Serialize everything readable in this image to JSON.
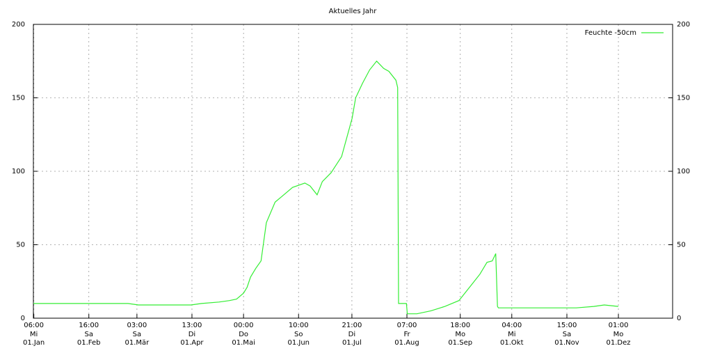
{
  "chart_data": {
    "type": "line",
    "title": "Aktuelles Jahr",
    "xlim": [
      0,
      365
    ],
    "ylim": [
      0,
      200
    ],
    "y2lim": [
      0,
      200
    ],
    "xticks": [
      {
        "value": 0.25,
        "label": "06:00\nMi\n01.Jan"
      },
      {
        "value": 31.667,
        "label": "16:00\nSa\n01.Feb"
      },
      {
        "value": 59.125,
        "label": "03:00\nSa\n01.Mär"
      },
      {
        "value": 90.542,
        "label": "13:00\nDi\n01.Apr"
      },
      {
        "value": 120,
        "label": "00:00\nDo\n01.Mai"
      },
      {
        "value": 151.417,
        "label": "10:00\nSo\n01.Jun"
      },
      {
        "value": 181.875,
        "label": "21:00\nDi\n01.Jul"
      },
      {
        "value": 213.292,
        "label": "07:00\nFr\n01.Aug"
      },
      {
        "value": 243.75,
        "label": "18:00\nMo\n01.Sep"
      },
      {
        "value": 273.167,
        "label": "04:00\nMi\n01.Okt"
      },
      {
        "value": 304.625,
        "label": "15:00\nSa\n01.Nov"
      },
      {
        "value": 334.042,
        "label": "01:00\nMo\n01.Dez"
      }
    ],
    "yticks": [
      0,
      50,
      100,
      150,
      200
    ],
    "y2ticks": [
      0,
      50,
      100,
      150,
      200
    ],
    "grid": true,
    "legend": "top-right",
    "series": [
      {
        "name": "Feuchte -50cm",
        "color": "#33ee33",
        "x": [
          0,
          40,
          54,
          60,
          90,
          96,
          106,
          112,
          116,
          120,
          122,
          124,
          127,
          130,
          133,
          138,
          142,
          148,
          155,
          158,
          162,
          165,
          170,
          176,
          182,
          184,
          188,
          192,
          196,
          200,
          203,
          207,
          208,
          208.5,
          213,
          213.5,
          219,
          227,
          235,
          243,
          251,
          255,
          259,
          262,
          264,
          265,
          265.5,
          290,
          310,
          320,
          326,
          334
        ],
        "values": [
          10,
          10,
          10,
          9,
          9,
          10,
          11,
          12,
          13,
          17,
          21,
          28,
          34,
          39,
          65,
          79,
          83,
          89,
          92,
          90,
          84,
          93,
          99,
          110,
          136,
          150,
          160,
          169,
          175,
          170,
          168,
          162,
          157,
          10,
          10,
          3,
          3,
          5,
          8,
          12,
          24,
          30,
          38,
          39,
          44,
          8,
          7,
          7,
          7,
          8,
          9,
          8
        ]
      }
    ]
  }
}
